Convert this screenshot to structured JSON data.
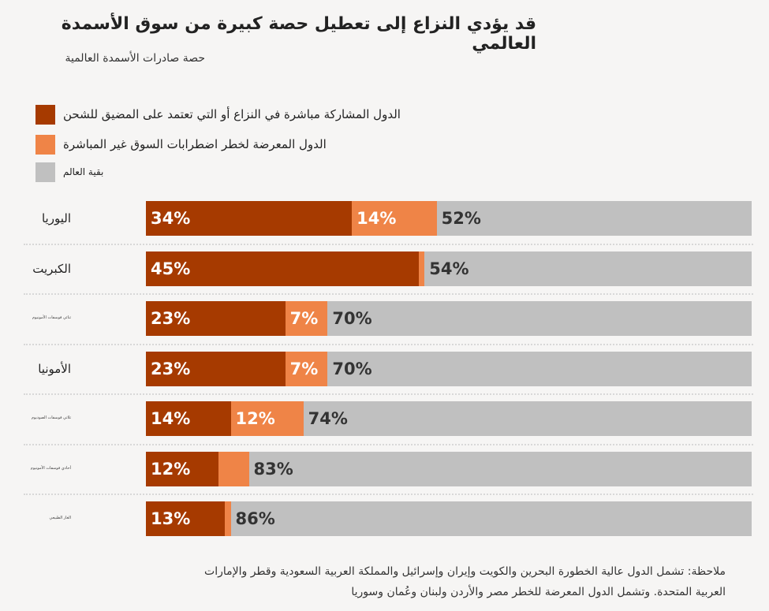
{
  "title": "قد يؤدي النزاع إلى تعطيل حصة كبيرة من سوق الأسمدة العالمي",
  "subtitle": "حصة صادرات الأسمدة العالمية",
  "note_line1": "ملاحظة: تشمل الدول عالية الخطورة البحرين والكويت وإيران وإسرائيل والمملكة العربية السعودية وقطر والإمارات",
  "note_line2": "العربية المتحدة. وتشمل الدول المعرضة للخطر مصر والأردن ولبنان وعُمان وسوريا",
  "chart_data": {
    "type": "bar",
    "stacked": true,
    "orientation": "horizontal",
    "xlim": [
      0,
      100
    ],
    "categories": [
      "اليوريا",
      "الكبريت",
      "ثنائي فوسفات الأمونيوم",
      "الأمونيا",
      "ثلاثي فوسفات الصوديوم",
      "أحادي فوسفات الأمونيوم",
      "الغاز الطبيعي"
    ],
    "series": [
      {
        "name": "الدول المشاركة مباشرة في النزاع أو التي تعتمد على المضيق للشحن",
        "color": "#a63a00",
        "values": [
          34,
          45,
          23,
          23,
          14,
          12,
          13
        ],
        "labels": [
          "34%",
          "45%",
          "23%",
          "23%",
          "14%",
          "12%",
          "13%"
        ]
      },
      {
        "name": "الدول المعرضة لخطر اضطرابات السوق غير المباشرة",
        "color": "#ef8447",
        "values": [
          14,
          1,
          7,
          7,
          12,
          5,
          1
        ],
        "labels": [
          "14%",
          "",
          "7%",
          "7%",
          "12%",
          "",
          ""
        ]
      },
      {
        "name": "بقية العالم",
        "color": "#c0c0c0",
        "values": [
          52,
          54,
          70,
          70,
          74,
          83,
          86
        ],
        "labels": [
          "52%",
          "54%",
          "70%",
          "70%",
          "74%",
          "83%",
          "86%"
        ]
      }
    ]
  }
}
